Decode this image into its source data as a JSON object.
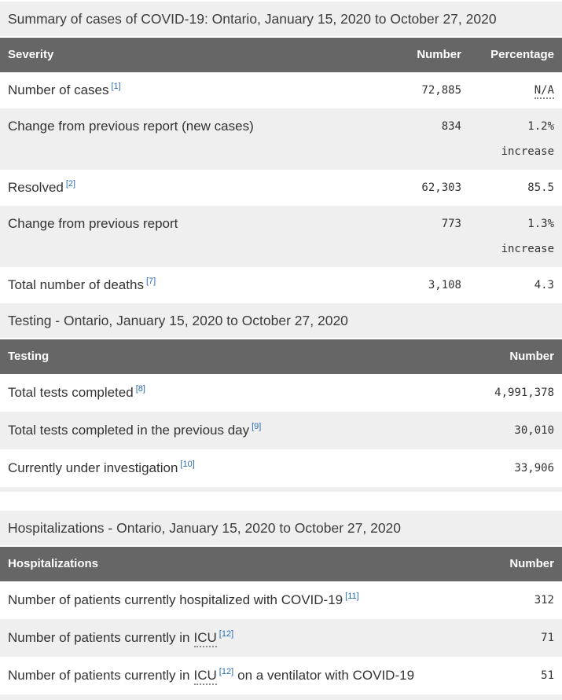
{
  "colors": {
    "table_header_bg": "#666666",
    "table_header_text": "#ffffff",
    "section_heading_bg": "#efefef",
    "row_alt_bg": "#efefef",
    "body_text": "#333333",
    "link_blue": "#2a6cb5"
  },
  "sections": [
    {
      "heading": "Summary of cases of COVID-19: Ontario, January 15, 2020 to October 27, 2020",
      "columns": [
        "Severity",
        "Number",
        "Percentage"
      ],
      "rows": [
        {
          "label": "Number of cases",
          "footnote": "[1]",
          "number": "72,885",
          "percentage": "N/A"
        },
        {
          "label": "Change from previous report (new cases)",
          "number": "834",
          "percentage": "1.2%",
          "percentage_note": "increase"
        },
        {
          "label": "Resolved",
          "footnote": "[2]",
          "number": "62,303",
          "percentage": "85.5"
        },
        {
          "label": "Change from previous report",
          "number": "773",
          "percentage": "1.3%",
          "percentage_note": "increase"
        },
        {
          "label": "Total number of deaths",
          "footnote": "[7]",
          "number": "3,108",
          "percentage": "4.3"
        }
      ]
    },
    {
      "heading": "Testing - Ontario, January 15, 2020 to October 27, 2020",
      "columns": [
        "Testing",
        "Number"
      ],
      "rows": [
        {
          "label": "Total tests completed",
          "footnote": "[8]",
          "number": "4,991,378"
        },
        {
          "label": "Total tests completed in the previous day",
          "footnote": "[9]",
          "number": "30,010"
        },
        {
          "label": "Currently under investigation",
          "footnote": "[10]",
          "number": "33,906"
        }
      ]
    },
    {
      "heading": "Hospitalizations - Ontario, January 15, 2020 to October 27, 2020",
      "columns": [
        "Hospitalizations",
        "Number"
      ],
      "rows": [
        {
          "label": "Number of patients currently hospitalized with COVID-19",
          "footnote": "[11]",
          "number": "312"
        },
        {
          "label_pre": "Number of patients currently in",
          "abbr": "ICU",
          "footnote": "[12]",
          "number": "71"
        },
        {
          "label_pre": "Number of patients currently in",
          "abbr": "ICU",
          "footnote": "[12]",
          "label_post": "on a ventilator with COVID-19",
          "number": "51"
        }
      ]
    }
  ]
}
